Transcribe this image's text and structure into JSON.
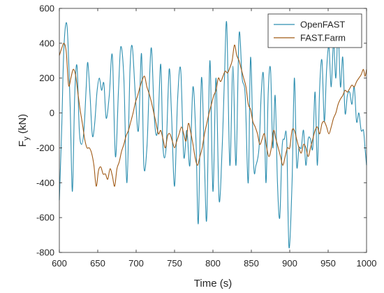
{
  "chart_data": {
    "type": "line",
    "title": "",
    "xlabel": "Time (s)",
    "ylabel_main": "F",
    "ylabel_sub": "y",
    "ylabel_unit": " (kN)",
    "xlim": [
      600,
      1000
    ],
    "ylim": [
      -800,
      600
    ],
    "xticks": [
      600,
      650,
      700,
      750,
      800,
      850,
      900,
      950,
      1000
    ],
    "xtick_labels": [
      "600",
      "650",
      "700",
      "750",
      "800",
      "850",
      "900",
      "950",
      "1000"
    ],
    "yticks": [
      -800,
      -600,
      -400,
      -200,
      0,
      200,
      400,
      600
    ],
    "ytick_labels": [
      "-800",
      "-600",
      "-400",
      "-200",
      "0",
      "200",
      "400",
      "600"
    ],
    "grid": false,
    "legend_position": "top-right",
    "series": [
      {
        "name": "OpenFAST",
        "color": "#2e8fb0",
        "points": [
          [
            600,
            -500
          ],
          [
            603,
            -100
          ],
          [
            606,
            380
          ],
          [
            610,
            500
          ],
          [
            614,
            50
          ],
          [
            617,
            -450
          ],
          [
            620,
            100
          ],
          [
            623,
            270
          ],
          [
            626,
            -100
          ],
          [
            629,
            -180
          ],
          [
            632,
            -100
          ],
          [
            635,
            150
          ],
          [
            637,
            290
          ],
          [
            640,
            100
          ],
          [
            643,
            -130
          ],
          [
            646,
            -60
          ],
          [
            649,
            120
          ],
          [
            652,
            200
          ],
          [
            655,
            130
          ],
          [
            658,
            170
          ],
          [
            661,
            -30
          ],
          [
            665,
            100
          ],
          [
            669,
            330
          ],
          [
            673,
            -250
          ],
          [
            677,
            130
          ],
          [
            680,
            380
          ],
          [
            684,
            200
          ],
          [
            688,
            -400
          ],
          [
            692,
            250
          ],
          [
            695,
            380
          ],
          [
            699,
            100
          ],
          [
            703,
            -100
          ],
          [
            707,
            340
          ],
          [
            710,
            -300
          ],
          [
            714,
            -200
          ],
          [
            717,
            150
          ],
          [
            720,
            370
          ],
          [
            724,
            -50
          ],
          [
            728,
            -100
          ],
          [
            732,
            280
          ],
          [
            735,
            -200
          ],
          [
            739,
            -200
          ],
          [
            743,
            250
          ],
          [
            746,
            0
          ],
          [
            750,
            -420
          ],
          [
            754,
            80
          ],
          [
            758,
            250
          ],
          [
            762,
            -250
          ],
          [
            766,
            -100
          ],
          [
            770,
            -300
          ],
          [
            774,
            150
          ],
          [
            778,
            -170
          ],
          [
            781,
            -630
          ],
          [
            785,
            200
          ],
          [
            789,
            -300
          ],
          [
            792,
            -600
          ],
          [
            796,
            300
          ],
          [
            800,
            -450
          ],
          [
            804,
            200
          ],
          [
            808,
            -500
          ],
          [
            812,
            -200
          ],
          [
            815,
            200
          ],
          [
            818,
            510
          ],
          [
            822,
            -300
          ],
          [
            826,
            270
          ],
          [
            830,
            -300
          ],
          [
            834,
            450
          ],
          [
            838,
            200
          ],
          [
            842,
            100
          ],
          [
            846,
            -400
          ],
          [
            849,
            320
          ],
          [
            853,
            -300
          ],
          [
            856,
            -300
          ],
          [
            860,
            -200
          ],
          [
            863,
            120
          ],
          [
            866,
            200
          ],
          [
            869,
            -400
          ],
          [
            872,
            120
          ],
          [
            875,
            250
          ],
          [
            878,
            -200
          ],
          [
            881,
            100
          ],
          [
            884,
            -400
          ],
          [
            887,
            -600
          ],
          [
            890,
            -200
          ],
          [
            893,
            -150
          ],
          [
            896,
            -150
          ],
          [
            899,
            -770
          ],
          [
            903,
            -400
          ],
          [
            906,
            200
          ],
          [
            909,
            -300
          ],
          [
            912,
            -200
          ],
          [
            915,
            -200
          ],
          [
            918,
            -100
          ],
          [
            921,
            -300
          ],
          [
            924,
            -150
          ],
          [
            927,
            -150
          ],
          [
            930,
            -200
          ],
          [
            933,
            120
          ],
          [
            936,
            -300
          ],
          [
            939,
            150
          ],
          [
            942,
            300
          ],
          [
            945,
            -50
          ],
          [
            948,
            250
          ],
          [
            951,
            380
          ],
          [
            954,
            150
          ],
          [
            957,
            410
          ],
          [
            960,
            200
          ],
          [
            963,
            470
          ],
          [
            966,
            150
          ],
          [
            969,
            320
          ],
          [
            972,
            0
          ],
          [
            975,
            100
          ],
          [
            978,
            120
          ],
          [
            981,
            50
          ],
          [
            984,
            150
          ],
          [
            987,
            -50
          ],
          [
            990,
            0
          ],
          [
            993,
            -100
          ],
          [
            996,
            -100
          ],
          [
            998,
            -200
          ],
          [
            1000,
            -300
          ]
        ]
      },
      {
        "name": "FAST.Farm",
        "color": "#a05a16",
        "points": [
          [
            600,
            330
          ],
          [
            603,
            370
          ],
          [
            606,
            400
          ],
          [
            609,
            350
          ],
          [
            612,
            160
          ],
          [
            615,
            200
          ],
          [
            618,
            250
          ],
          [
            621,
            220
          ],
          [
            624,
            120
          ],
          [
            627,
            20
          ],
          [
            630,
            -60
          ],
          [
            633,
            -150
          ],
          [
            636,
            -200
          ],
          [
            639,
            -200
          ],
          [
            642,
            -230
          ],
          [
            645,
            -300
          ],
          [
            648,
            -420
          ],
          [
            651,
            -330
          ],
          [
            654,
            -310
          ],
          [
            657,
            -350
          ],
          [
            660,
            -350
          ],
          [
            663,
            -380
          ],
          [
            666,
            -320
          ],
          [
            669,
            -360
          ],
          [
            672,
            -420
          ],
          [
            675,
            -320
          ],
          [
            678,
            -280
          ],
          [
            681,
            -220
          ],
          [
            684,
            -180
          ],
          [
            687,
            -130
          ],
          [
            690,
            -100
          ],
          [
            693,
            -50
          ],
          [
            696,
            0
          ],
          [
            699,
            60
          ],
          [
            702,
            100
          ],
          [
            705,
            150
          ],
          [
            708,
            190
          ],
          [
            711,
            210
          ],
          [
            714,
            150
          ],
          [
            717,
            110
          ],
          [
            720,
            60
          ],
          [
            723,
            0
          ],
          [
            726,
            -60
          ],
          [
            729,
            -120
          ],
          [
            732,
            -100
          ],
          [
            735,
            -150
          ],
          [
            738,
            -200
          ],
          [
            741,
            -130
          ],
          [
            744,
            -120
          ],
          [
            747,
            -160
          ],
          [
            750,
            -200
          ],
          [
            753,
            -160
          ],
          [
            756,
            -120
          ],
          [
            759,
            -80
          ],
          [
            762,
            -120
          ],
          [
            765,
            -160
          ],
          [
            768,
            -60
          ],
          [
            771,
            -110
          ],
          [
            774,
            -180
          ],
          [
            777,
            -260
          ],
          [
            780,
            -300
          ],
          [
            783,
            -250
          ],
          [
            786,
            -200
          ],
          [
            789,
            -120
          ],
          [
            792,
            -60
          ],
          [
            795,
            0
          ],
          [
            798,
            50
          ],
          [
            801,
            100
          ],
          [
            804,
            130
          ],
          [
            807,
            200
          ],
          [
            810,
            180
          ],
          [
            813,
            210
          ],
          [
            816,
            240
          ],
          [
            819,
            230
          ],
          [
            822,
            260
          ],
          [
            825,
            300
          ],
          [
            828,
            390
          ],
          [
            831,
            330
          ],
          [
            834,
            300
          ],
          [
            837,
            250
          ],
          [
            840,
            200
          ],
          [
            843,
            150
          ],
          [
            846,
            50
          ],
          [
            849,
            20
          ],
          [
            852,
            -50
          ],
          [
            855,
            -80
          ],
          [
            858,
            -120
          ],
          [
            861,
            -180
          ],
          [
            864,
            -150
          ],
          [
            867,
            -120
          ],
          [
            870,
            -200
          ],
          [
            873,
            -250
          ],
          [
            876,
            -200
          ],
          [
            879,
            -100
          ],
          [
            882,
            -150
          ],
          [
            885,
            -200
          ],
          [
            888,
            -250
          ],
          [
            891,
            -300
          ],
          [
            894,
            -250
          ],
          [
            897,
            -200
          ],
          [
            900,
            -200
          ],
          [
            903,
            -100
          ],
          [
            906,
            -100
          ],
          [
            909,
            -150
          ],
          [
            912,
            -200
          ],
          [
            915,
            -230
          ],
          [
            918,
            -180
          ],
          [
            921,
            -200
          ],
          [
            924,
            -250
          ],
          [
            927,
            -200
          ],
          [
            930,
            -150
          ],
          [
            933,
            -100
          ],
          [
            936,
            -80
          ],
          [
            939,
            -120
          ],
          [
            942,
            -60
          ],
          [
            945,
            -50
          ],
          [
            948,
            -80
          ],
          [
            951,
            -120
          ],
          [
            954,
            -80
          ],
          [
            957,
            -30
          ],
          [
            960,
            0
          ],
          [
            963,
            50
          ],
          [
            966,
            80
          ],
          [
            969,
            100
          ],
          [
            972,
            130
          ],
          [
            975,
            120
          ],
          [
            978,
            140
          ],
          [
            981,
            160
          ],
          [
            984,
            150
          ],
          [
            987,
            180
          ],
          [
            990,
            200
          ],
          [
            993,
            220
          ],
          [
            996,
            250
          ],
          [
            998,
            210
          ],
          [
            1000,
            250
          ]
        ]
      }
    ]
  }
}
